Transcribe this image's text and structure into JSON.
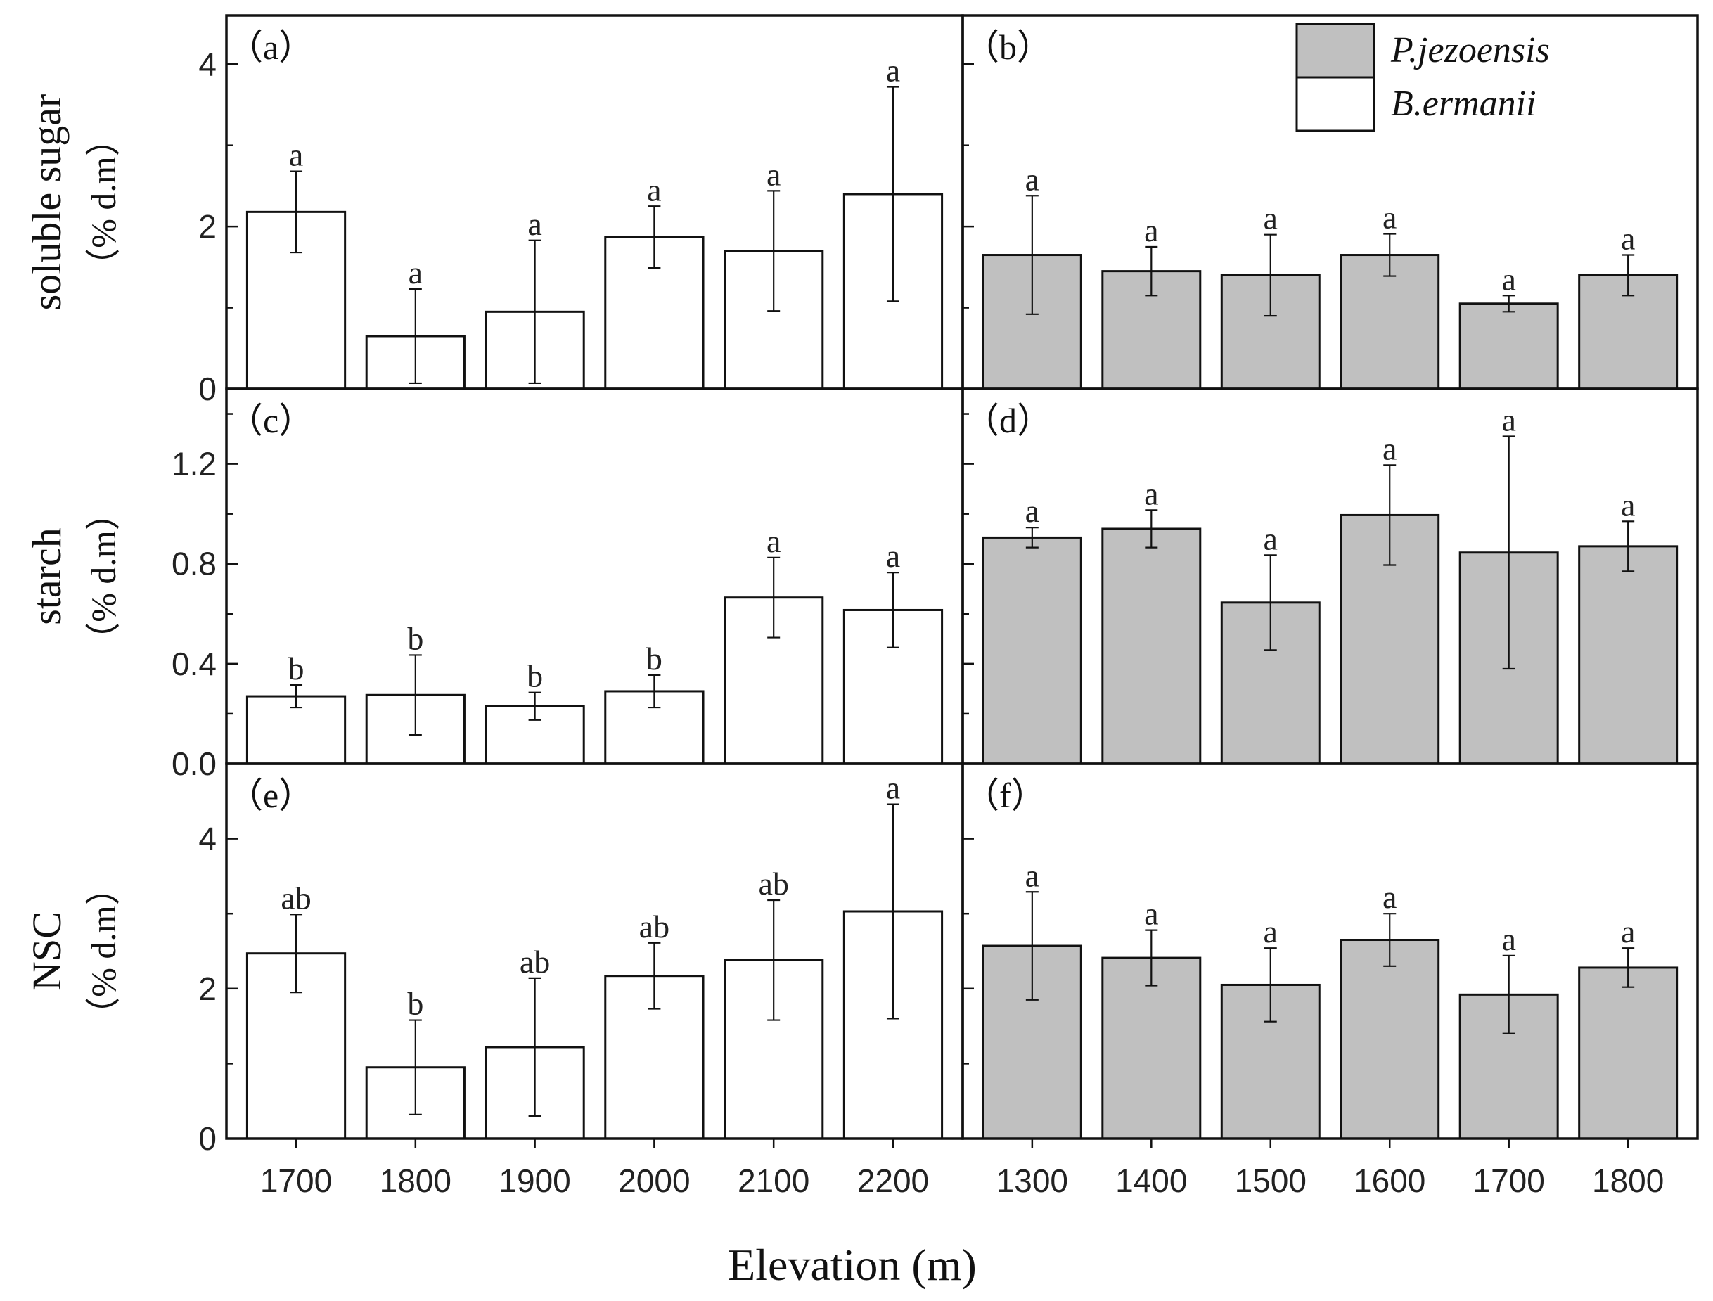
{
  "chart_data": {
    "type": "bar",
    "title": "",
    "xlabel": "Elevation (m)",
    "grid": false,
    "legend": {
      "position": "top-right",
      "entries": [
        {
          "name": "P.jezoensis",
          "fill": "#c0c0c0"
        },
        {
          "name": "B.ermanii",
          "fill": "#ffffff"
        }
      ]
    },
    "colors": {
      "P.jezoensis": "#c0c0c0",
      "B.ermanii": "#ffffff",
      "edge": "#111111"
    },
    "rows": [
      {
        "ylabel": "soluble sugar",
        "yunit": "（% d.m）",
        "ylim": [
          0,
          4.6
        ],
        "yticks": [
          "0",
          "2",
          "4"
        ],
        "ytick_values": [
          0,
          2,
          4
        ],
        "minor_step": 1
      },
      {
        "ylabel": "starch",
        "yunit": "（% d.m）",
        "ylim": [
          0,
          1.5
        ],
        "yticks": [
          "0.0",
          "0.4",
          "0.8",
          "1.2"
        ],
        "ytick_values": [
          0,
          0.4,
          0.8,
          1.2
        ],
        "minor_step": 0.2
      },
      {
        "ylabel": "NSC",
        "yunit": "（% d.m）",
        "ylim": [
          0,
          5
        ],
        "yticks": [
          "0",
          "2",
          "4"
        ],
        "ytick_values": [
          0,
          2,
          4
        ],
        "minor_step": 1
      }
    ],
    "charts": [
      {
        "panel": "（a）",
        "row": 0,
        "col": 0,
        "series": "B.ermanii",
        "categories": [
          "1700",
          "1800",
          "1900",
          "2000",
          "2100",
          "2200"
        ],
        "values": [
          2.18,
          0.65,
          0.95,
          1.87,
          1.7,
          2.4
        ],
        "errors": [
          0.5,
          0.58,
          0.88,
          0.38,
          0.74,
          1.32
        ],
        "labels": [
          "a",
          "a",
          "a",
          "a",
          "a",
          "a"
        ]
      },
      {
        "panel": "（b）",
        "row": 0,
        "col": 1,
        "series": "P.jezoensis",
        "categories": [
          "1300",
          "1400",
          "1500",
          "1600",
          "1700",
          "1800"
        ],
        "values": [
          1.65,
          1.45,
          1.4,
          1.65,
          1.05,
          1.4
        ],
        "errors": [
          0.73,
          0.3,
          0.5,
          0.26,
          0.1,
          0.25
        ],
        "labels": [
          "a",
          "a",
          "a",
          "a",
          "a",
          "a"
        ]
      },
      {
        "panel": "（c）",
        "row": 1,
        "col": 0,
        "series": "B.ermanii",
        "categories": [
          "1700",
          "1800",
          "1900",
          "2000",
          "2100",
          "2200"
        ],
        "values": [
          0.27,
          0.275,
          0.23,
          0.29,
          0.665,
          0.615
        ],
        "errors": [
          0.045,
          0.16,
          0.055,
          0.065,
          0.16,
          0.15
        ],
        "labels": [
          "b",
          "b",
          "b",
          "b",
          "a",
          "a"
        ]
      },
      {
        "panel": "（d）",
        "row": 1,
        "col": 1,
        "series": "P.jezoensis",
        "categories": [
          "1300",
          "1400",
          "1500",
          "1600",
          "1700",
          "1800"
        ],
        "values": [
          0.905,
          0.94,
          0.645,
          0.995,
          0.845,
          0.87
        ],
        "errors": [
          0.04,
          0.075,
          0.19,
          0.2,
          0.465,
          0.1
        ],
        "labels": [
          "a",
          "a",
          "a",
          "a",
          "a",
          "a"
        ]
      },
      {
        "panel": "（e）",
        "row": 2,
        "col": 0,
        "series": "B.ermanii",
        "categories": [
          "1700",
          "1800",
          "1900",
          "2000",
          "2100",
          "2200"
        ],
        "values": [
          2.47,
          0.95,
          1.22,
          2.17,
          2.38,
          3.03
        ],
        "errors": [
          0.52,
          0.63,
          0.92,
          0.44,
          0.8,
          1.43
        ],
        "labels": [
          "ab",
          "b",
          "ab",
          "ab",
          "ab",
          "a"
        ]
      },
      {
        "panel": "（f）",
        "row": 2,
        "col": 1,
        "series": "P.jezoensis",
        "categories": [
          "1300",
          "1400",
          "1500",
          "1600",
          "1700",
          "1800"
        ],
        "values": [
          2.57,
          2.41,
          2.05,
          2.65,
          1.92,
          2.28
        ],
        "errors": [
          0.72,
          0.37,
          0.49,
          0.35,
          0.52,
          0.26
        ],
        "labels": [
          "a",
          "a",
          "a",
          "a",
          "a",
          "a"
        ]
      }
    ]
  }
}
